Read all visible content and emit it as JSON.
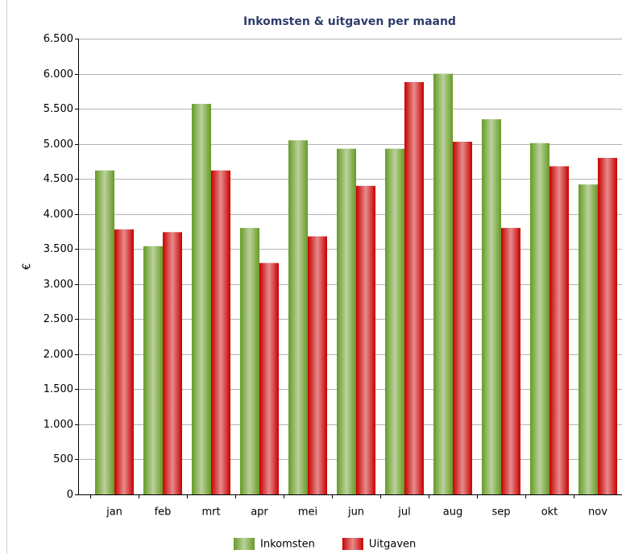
{
  "chart_data": {
    "type": "bar",
    "title": "Inkomsten & uitgaven per maand",
    "ylabel": "€",
    "categories": [
      "jan",
      "feb",
      "mrt",
      "apr",
      "mei",
      "jun",
      "jul",
      "aug",
      "sep",
      "okt",
      "nov"
    ],
    "series": [
      {
        "name": "Inkomsten",
        "color": "#679a26",
        "values": [
          4620,
          3540,
          5570,
          3800,
          5050,
          4930,
          4930,
          6000,
          5350,
          5010,
          4420
        ]
      },
      {
        "name": "Uitgaven",
        "color": "#c80000",
        "values": [
          3780,
          3740,
          4620,
          3300,
          3680,
          4400,
          5880,
          5030,
          3800,
          4680,
          4800
        ]
      }
    ],
    "ylim": [
      0,
      6500
    ],
    "yticks": [
      0,
      {
        "value": 500,
        "label": "500"
      },
      {
        "value": 1000,
        "label": "1.000"
      },
      {
        "value": 1500,
        "label": "1.500"
      },
      {
        "value": 2000,
        "label": "2.000"
      },
      {
        "value": 2500,
        "label": "2.500"
      },
      {
        "value": 3000,
        "label": "3.000"
      },
      {
        "value": 3500,
        "label": "3.500"
      },
      {
        "value": 4000,
        "label": "4.000"
      },
      {
        "value": 4500,
        "label": "4.500"
      },
      {
        "value": 5000,
        "label": "5.000"
      },
      {
        "value": 5500,
        "label": "5.500"
      },
      {
        "value": 6000,
        "label": "6.000"
      },
      {
        "value": 6500,
        "label": "6.500"
      }
    ],
    "grid": true,
    "legend": "bottom"
  }
}
